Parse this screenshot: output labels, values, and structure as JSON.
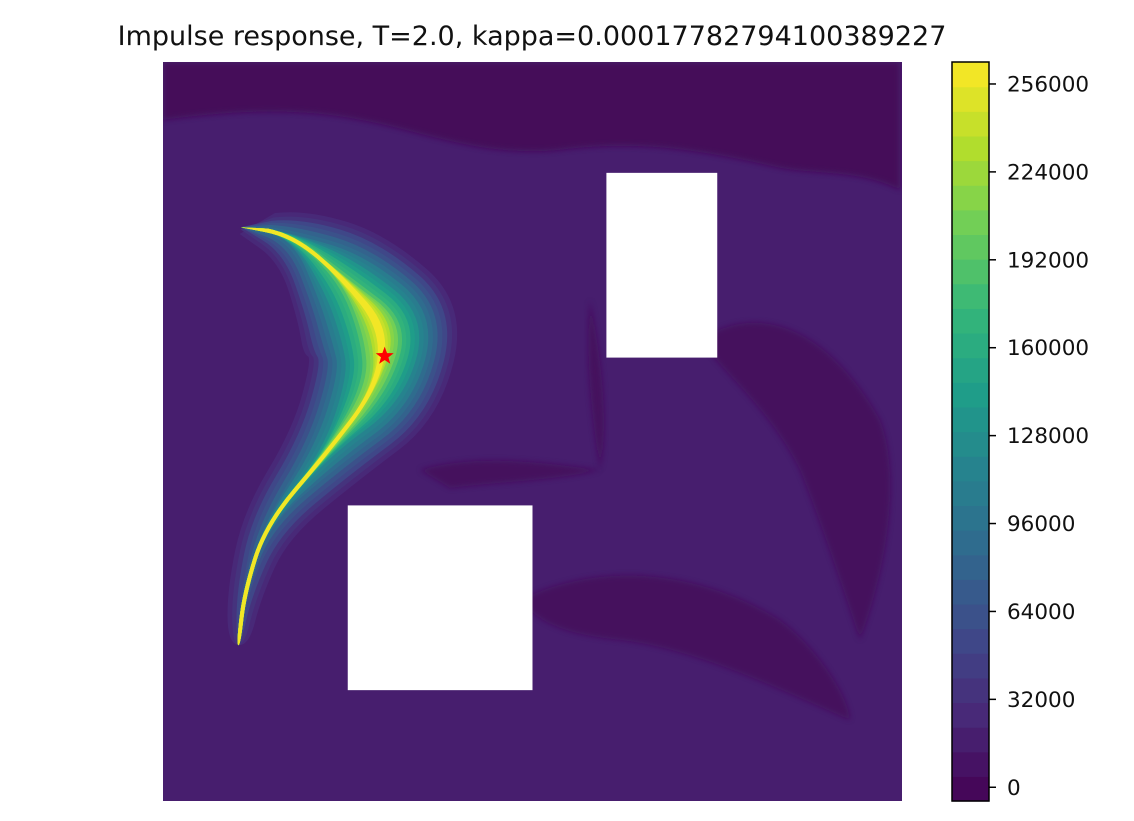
{
  "chart_data": {
    "type": "heatmap",
    "subtype": "filled-contour",
    "title": "Impulse response, T=2.0, kappa=0.00017782794100389227",
    "xlabel": "",
    "ylabel": "",
    "axes_visible": false,
    "domain": {
      "xlim": [
        0,
        1
      ],
      "ylim": [
        0,
        1
      ]
    },
    "colormap": "viridis",
    "colormap_stops": [
      "#440154",
      "#482777",
      "#3e4989",
      "#31688e",
      "#26828e",
      "#1f9e89",
      "#35b779",
      "#6ece58",
      "#b5de2b",
      "#fde725"
    ],
    "colorbar": {
      "range": [
        -5000,
        264000
      ],
      "ticks": [
        0,
        32000,
        64000,
        96000,
        128000,
        160000,
        192000,
        224000,
        256000
      ],
      "tick_labels": [
        "0",
        "32000",
        "64000",
        "96000",
        "128000",
        "160000",
        "192000",
        "224000",
        "256000"
      ],
      "levels": 30
    },
    "background_value": 15000,
    "obstacles": [
      {
        "name": "upper-right-obstacle",
        "x": [
          0.6,
          0.75
        ],
        "y": [
          0.6,
          0.85
        ]
      },
      {
        "name": "lower-left-obstacle",
        "x": [
          0.25,
          0.5
        ],
        "y": [
          0.15,
          0.4
        ]
      }
    ],
    "plume": {
      "description": "crescent-shaped high-concentration plume bending from the source down along the left wall",
      "peak_value": 262000,
      "centerline": [
        [
          0.106,
          0.779
        ],
        [
          0.176,
          0.765
        ],
        [
          0.243,
          0.708
        ],
        [
          0.301,
          0.638
        ],
        [
          0.288,
          0.558
        ],
        [
          0.22,
          0.469
        ],
        [
          0.139,
          0.374
        ],
        [
          0.11,
          0.281
        ],
        [
          0.102,
          0.211
        ]
      ],
      "values": [
        35000,
        95000,
        190000,
        258000,
        215000,
        130000,
        85000,
        60000,
        40000
      ]
    },
    "marker": {
      "label": "impulse source",
      "x": 0.3,
      "y": 0.602,
      "color": "#ff0000",
      "shape": "star"
    }
  }
}
